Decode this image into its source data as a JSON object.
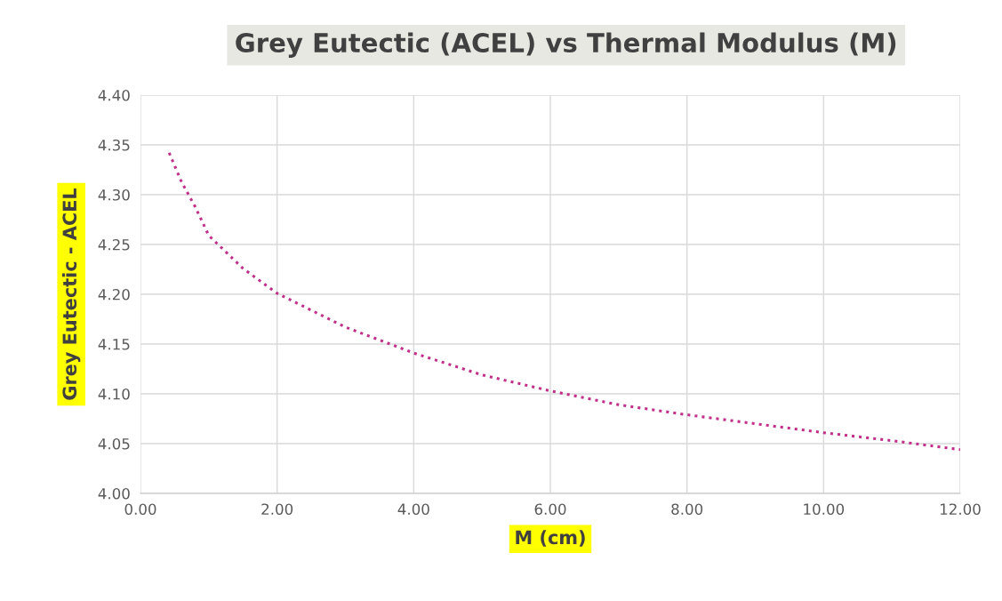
{
  "chart_data": {
    "type": "line",
    "title": "Grey Eutectic (ACEL) vs Thermal Modulus (M)",
    "xlabel": "M (cm)",
    "ylabel": "Grey Eutectic - ACEL",
    "series": [
      {
        "color": "#c0308a",
        "x": [
          0.42,
          0.6,
          0.8,
          1.0,
          1.5,
          2,
          3,
          4,
          5,
          6,
          7,
          8,
          9,
          10,
          11,
          12
        ],
        "values": [
          4.342,
          4.313,
          4.288,
          4.259,
          4.226,
          4.201,
          4.167,
          4.141,
          4.119,
          4.103,
          4.089,
          4.079,
          4.07,
          4.061,
          4.053,
          4.044
        ]
      }
    ],
    "xlim": [
      0,
      12
    ],
    "xticks": [
      {
        "value": 0,
        "label": "0.00"
      },
      {
        "value": 2,
        "label": "2.00"
      },
      {
        "value": 4,
        "label": "4.00"
      },
      {
        "value": 6,
        "label": "6.00"
      },
      {
        "value": 8,
        "label": "8.00"
      },
      {
        "value": 10,
        "label": "10.00"
      },
      {
        "value": 12,
        "label": "12.00"
      }
    ],
    "ylim": [
      4.0,
      4.4
    ],
    "yticks": [
      {
        "value": 4.0,
        "label": "4.00"
      },
      {
        "value": 4.05,
        "label": "4.05"
      },
      {
        "value": 4.1,
        "label": "4.10"
      },
      {
        "value": 4.15,
        "label": "4.15"
      },
      {
        "value": 4.2,
        "label": "4.20"
      },
      {
        "value": 4.25,
        "label": "4.25"
      },
      {
        "value": 4.3,
        "label": "4.30"
      },
      {
        "value": 4.35,
        "label": "4.35"
      },
      {
        "value": 4.4,
        "label": "4.40"
      }
    ],
    "grid": true,
    "marker": "none",
    "line_style": "dotted"
  }
}
